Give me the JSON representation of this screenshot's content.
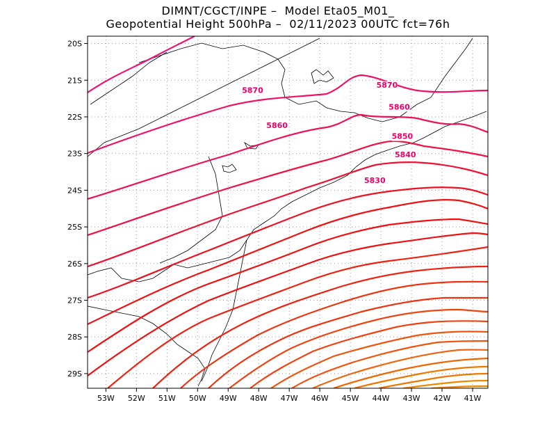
{
  "title": {
    "line1": "DIMNT/CGCT/INPE –  Model Eta05_M01_",
    "line2": "Geopotential Height 500hPa –  02/11/2023 00UTC fct=76h"
  },
  "map": {
    "lon_range": [
      -53.6,
      -40.5
    ],
    "lat_range": [
      -29.4,
      -19.8
    ],
    "lon_ticks": [
      {
        "v": -53,
        "label": "53W"
      },
      {
        "v": -52,
        "label": "52W"
      },
      {
        "v": -51,
        "label": "51W"
      },
      {
        "v": -50,
        "label": "50W"
      },
      {
        "v": -49,
        "label": "49W"
      },
      {
        "v": -48,
        "label": "48W"
      },
      {
        "v": -47,
        "label": "47W"
      },
      {
        "v": -46,
        "label": "46W"
      },
      {
        "v": -45,
        "label": "45W"
      },
      {
        "v": -44,
        "label": "44W"
      },
      {
        "v": -43,
        "label": "43W"
      },
      {
        "v": -42,
        "label": "42W"
      },
      {
        "v": -41,
        "label": "41W"
      }
    ],
    "lat_ticks": [
      {
        "v": -20,
        "label": "20S"
      },
      {
        "v": -21,
        "label": "21S"
      },
      {
        "v": -22,
        "label": "22S"
      },
      {
        "v": -23,
        "label": "23S"
      },
      {
        "v": -24,
        "label": "24S"
      },
      {
        "v": -25,
        "label": "25S"
      },
      {
        "v": -26,
        "label": "26S"
      },
      {
        "v": -27,
        "label": "27S"
      },
      {
        "v": -28,
        "label": "28S"
      },
      {
        "v": -29,
        "label": "29S"
      }
    ],
    "contour_labels": [
      {
        "value": "5870",
        "lon": -48.2,
        "lat": -21.35
      },
      {
        "value": "5870",
        "lon": -43.8,
        "lat": -21.2
      },
      {
        "value": "5860",
        "lon": -47.4,
        "lat": -22.3
      },
      {
        "value": "5860",
        "lon": -43.4,
        "lat": -21.8
      },
      {
        "value": "5850",
        "lon": -43.3,
        "lat": -22.6
      },
      {
        "value": "5840",
        "lon": -43.2,
        "lat": -23.1
      },
      {
        "value": "5830",
        "lon": -44.2,
        "lat": -23.8
      }
    ],
    "colors": {
      "c5870": "#ee1166",
      "c5860": "#ee1155",
      "c5850": "#ee1144",
      "c5840": "#ee1133",
      "mid": "#dd1111",
      "south": "#ee3311",
      "far_south": "#ee7700"
    }
  }
}
